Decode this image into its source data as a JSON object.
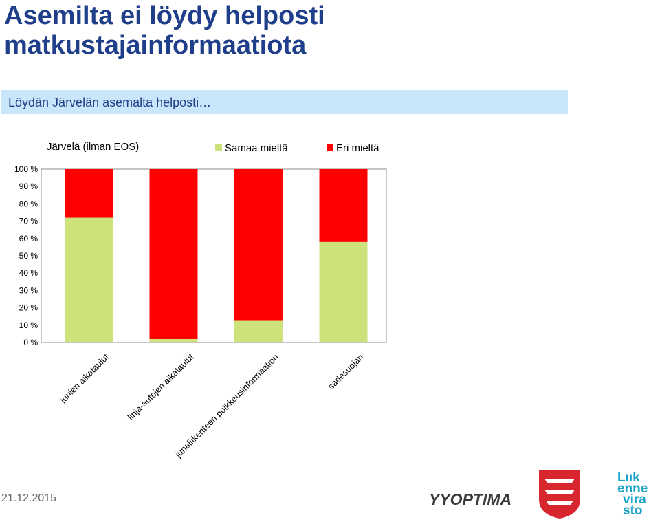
{
  "page": {
    "title": "Asemilta ei löydy helposti matkustajainformaatiota",
    "subtitle": "Löydän Järvelän asemalta helposti…",
    "date": "21.12.2015"
  },
  "logos": {
    "optima": "YYOPTIMA",
    "liikenne_line1": "Lıık",
    "liikenne_line2": "enne",
    "liikenne_line3": "vira",
    "liikenne_line4": "sto"
  },
  "colors": {
    "agree": "#cde27a",
    "disagree": "#ff0000",
    "title": "#1f3f8a",
    "subtitle_band": "#c9e6fa"
  },
  "chart_data": {
    "type": "bar",
    "stacked": true,
    "title": "Järvelä (ilman EOS)",
    "categories": [
      "junien aikataulut",
      "linja-autojen aikataulut",
      "junaliikenteen poikkeusinformaation",
      "sadesuojan"
    ],
    "series": [
      {
        "name": "Samaa mieltä",
        "color": "#cde27a",
        "values": [
          72,
          2,
          12.5,
          58
        ]
      },
      {
        "name": "Eri mieltä",
        "color": "#ff0000",
        "values": [
          28,
          98,
          87.5,
          42
        ]
      }
    ],
    "yticks": [
      "0 %",
      "10 %",
      "20 %",
      "30 %",
      "40 %",
      "50 %",
      "60 %",
      "70 %",
      "80 %",
      "90 %",
      "100 %"
    ],
    "ylim": [
      0,
      100
    ],
    "legend_position": "top-right"
  }
}
